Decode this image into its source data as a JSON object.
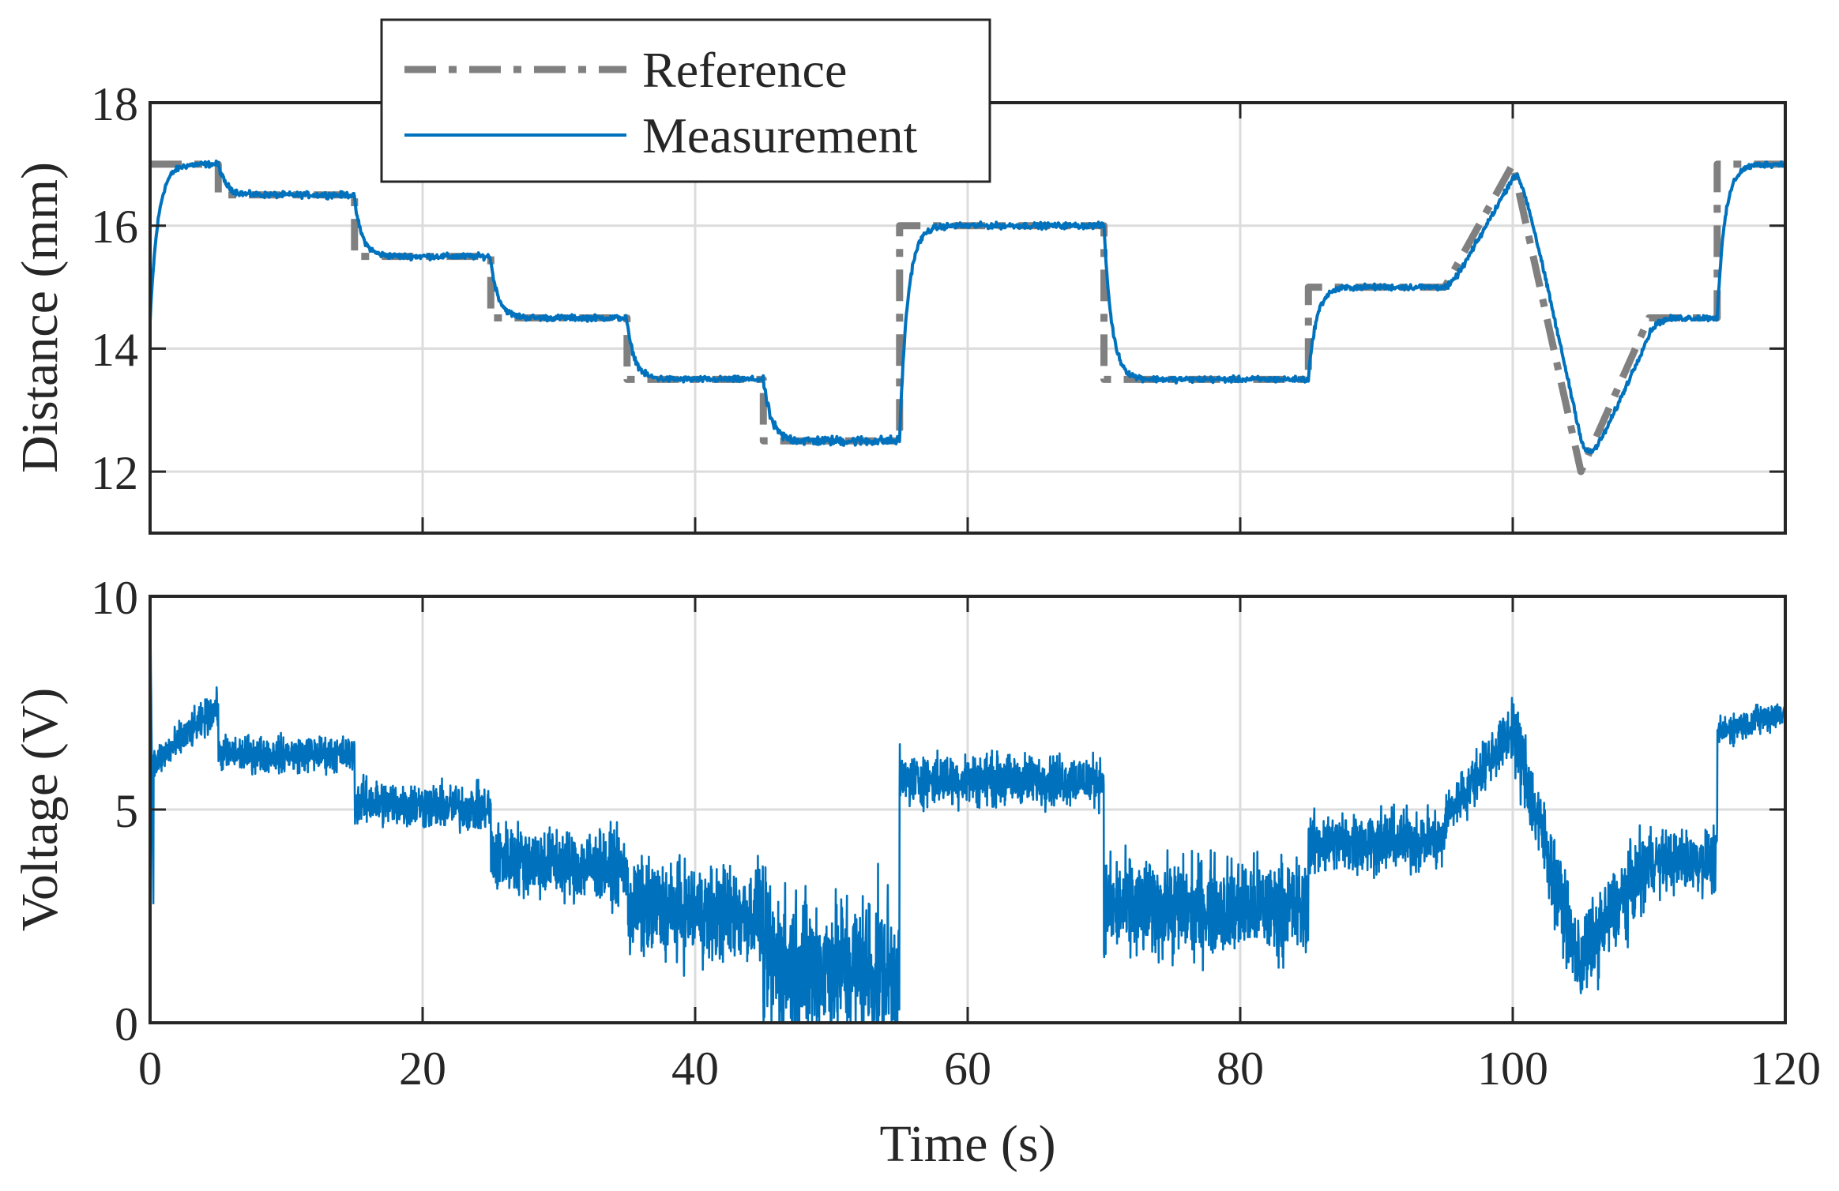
{
  "colors": {
    "reference": "#808080",
    "measurement": "#0072BD",
    "axis": "#262626",
    "grid": "#dcdcdc",
    "background": "#ffffff"
  },
  "chart_data": [
    {
      "type": "line",
      "panel": "top",
      "title": "",
      "xlabel": "",
      "ylabel": "Distance (mm)",
      "xlim": [
        0,
        120
      ],
      "ylim": [
        11,
        18
      ],
      "xticks": [
        0,
        20,
        40,
        60,
        80,
        100,
        120
      ],
      "yticks": [
        12,
        14,
        16,
        18
      ],
      "ytick_labels": [
        "12",
        "14",
        "16",
        "18"
      ],
      "grid": true,
      "legend": {
        "placement": "top-left, above plot",
        "entries": [
          {
            "label": "Reference",
            "style": "dash-dot"
          },
          {
            "label": "Measurement",
            "style": "solid"
          }
        ]
      },
      "series": [
        {
          "name": "Reference",
          "style": "dash-dot",
          "points": [
            [
              0,
              17
            ],
            [
              5,
              17
            ],
            [
              5,
              16.5
            ],
            [
              15,
              16.5
            ],
            [
              15,
              15.5
            ],
            [
              25,
              15.5
            ],
            [
              25,
              14.5
            ],
            [
              35,
              14.5
            ],
            [
              35,
              13.5
            ],
            [
              45,
              13.5
            ],
            [
              45,
              12.5
            ],
            [
              55,
              12.5
            ],
            [
              55,
              16
            ],
            [
              70,
              16
            ],
            [
              70,
              13.5
            ],
            [
              85,
              13.5
            ],
            [
              85,
              15
            ],
            [
              95,
              15
            ],
            [
              100,
              17
            ],
            [
              105,
              12
            ],
            [
              110,
              14.5
            ],
            [
              115,
              14.5
            ],
            [
              115,
              17
            ],
            [
              120,
              17
            ]
          ]
        },
        {
          "name": "Measurement",
          "style": "solid",
          "initial": 14.2,
          "tau": 0.6,
          "noise": 0.04,
          "segments": [
            {
              "t0": 0,
              "t1": 5,
              "from": 17,
              "to": 17
            },
            {
              "t0": 5,
              "t1": 15,
              "from": 16.5,
              "to": 16.5
            },
            {
              "t0": 15,
              "t1": 25,
              "from": 15.5,
              "to": 15.5
            },
            {
              "t0": 25,
              "t1": 35,
              "from": 14.5,
              "to": 14.5
            },
            {
              "t0": 35,
              "t1": 45,
              "from": 13.5,
              "to": 13.5
            },
            {
              "t0": 45,
              "t1": 55,
              "from": 12.5,
              "to": 12.5
            },
            {
              "t0": 55,
              "t1": 70,
              "from": 16,
              "to": 16
            },
            {
              "t0": 70,
              "t1": 85,
              "from": 13.5,
              "to": 13.5
            },
            {
              "t0": 85,
              "t1": 95,
              "from": 15,
              "to": 15
            },
            {
              "t0": 95,
              "t1": 100,
              "from": 15,
              "to": 17
            },
            {
              "t0": 100,
              "t1": 105,
              "from": 17,
              "to": 12
            },
            {
              "t0": 105,
              "t1": 110,
              "from": 12,
              "to": 14.5
            },
            {
              "t0": 110,
              "t1": 115,
              "from": 14.5,
              "to": 14.5
            },
            {
              "t0": 115,
              "t1": 120,
              "from": 17,
              "to": 17
            }
          ]
        }
      ]
    },
    {
      "type": "line",
      "panel": "bottom",
      "title": "",
      "xlabel": "Time (s)",
      "ylabel": "Voltage (V)",
      "xlim": [
        0,
        120
      ],
      "ylim": [
        0,
        10
      ],
      "xticks": [
        0,
        20,
        40,
        60,
        80,
        100,
        120
      ],
      "xtick_labels": [
        "0",
        "20",
        "40",
        "60",
        "80",
        "100",
        "120"
      ],
      "yticks": [
        0,
        5,
        10
      ],
      "ytick_labels": [
        "0",
        "5",
        "10"
      ],
      "grid": true,
      "series": [
        {
          "name": "Voltage",
          "style": "solid",
          "noise_note": "noisy control voltage, clipped to [0, 10]",
          "segments": [
            {
              "t0": 0,
              "t1": 5,
              "from": 6.0,
              "to": 7.4,
              "amp": 0.35
            },
            {
              "t0": 5,
              "t1": 15,
              "from": 6.3,
              "to": 6.3,
              "amp": 0.35
            },
            {
              "t0": 15,
              "t1": 25,
              "from": 5.2,
              "to": 5.0,
              "amp": 0.45
            },
            {
              "t0": 25,
              "t1": 35,
              "from": 3.9,
              "to": 3.6,
              "amp": 0.7
            },
            {
              "t0": 35,
              "t1": 45,
              "from": 2.7,
              "to": 2.5,
              "amp": 0.95
            },
            {
              "t0": 45,
              "t1": 55,
              "from": 1.4,
              "to": 1.2,
              "amp": 1.5
            },
            {
              "t0": 55,
              "t1": 70,
              "from": 5.7,
              "to": 5.7,
              "amp": 0.5
            },
            {
              "t0": 70,
              "t1": 85,
              "from": 2.7,
              "to": 2.7,
              "amp": 0.95
            },
            {
              "t0": 85,
              "t1": 95,
              "from": 4.2,
              "to": 4.3,
              "amp": 0.6
            },
            {
              "t0": 95,
              "t1": 100,
              "from": 4.8,
              "to": 6.9,
              "amp": 0.5
            },
            {
              "t0": 100,
              "t1": 105,
              "from": 6.9,
              "to": 1.2,
              "amp": 0.8
            },
            {
              "t0": 105,
              "t1": 110,
              "from": 1.5,
              "to": 3.8,
              "amp": 0.8
            },
            {
              "t0": 110,
              "t1": 115,
              "from": 3.8,
              "to": 3.8,
              "amp": 0.6
            },
            {
              "t0": 115,
              "t1": 120,
              "from": 6.8,
              "to": 7.3,
              "amp": 0.3
            }
          ]
        }
      ]
    }
  ]
}
